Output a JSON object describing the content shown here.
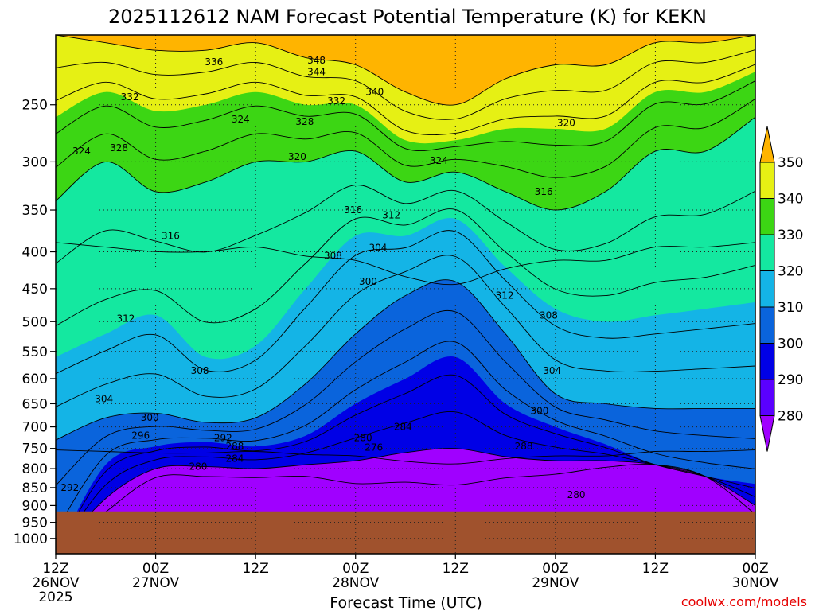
{
  "chart_data": {
    "type": "heatmap",
    "title": "2025112612 NAM Forecast Potential Temperature (K) for KEKN",
    "xlabel": "Forecast Time (UTC)",
    "ylabel": "",
    "credit": "coolwx.com/models",
    "x_ticks": [
      {
        "value": 0,
        "lines": [
          "12Z",
          "26NOV",
          "2025"
        ]
      },
      {
        "value": 12,
        "lines": [
          "00Z",
          "27NOV"
        ]
      },
      {
        "value": 24,
        "lines": [
          "12Z"
        ]
      },
      {
        "value": 36,
        "lines": [
          "00Z",
          "28NOV"
        ]
      },
      {
        "value": 48,
        "lines": [
          "12Z"
        ]
      },
      {
        "value": 60,
        "lines": [
          "00Z",
          "29NOV"
        ]
      },
      {
        "value": 72,
        "lines": [
          "12Z"
        ]
      },
      {
        "value": 84,
        "lines": [
          "00Z",
          "30NOV"
        ]
      }
    ],
    "xlim": [
      0,
      84
    ],
    "y_ticks": [
      250,
      300,
      350,
      400,
      450,
      500,
      550,
      600,
      650,
      700,
      750,
      800,
      850,
      900,
      950,
      1000
    ],
    "ylim": [
      200,
      1050
    ],
    "y_scale": "log",
    "y_inverted": true,
    "terrain_top_pressure": 917,
    "colorbar": {
      "levels": [
        280,
        290,
        300,
        310,
        320,
        330,
        340,
        350
      ],
      "labels": [
        "280",
        "290",
        "300",
        "310",
        "320",
        "330",
        "340",
        "350"
      ],
      "colors": [
        "#a000ff",
        "#5a00ff",
        "#0000e6",
        "#0a64dc",
        "#14b4e6",
        "#14e8a0",
        "#3cd614",
        "#e6f014",
        "#ffb400"
      ],
      "extend": "both"
    },
    "profiles": [
      {
        "x": 0,
        "levels": [
          [
            "280",
            1050
          ],
          [
            "290",
            1050
          ],
          [
            "300",
            730
          ],
          [
            "310",
            560
          ],
          [
            "320",
            340
          ],
          [
            "330",
            260
          ],
          [
            "340",
            200
          ]
        ]
      },
      {
        "x": 6,
        "levels": [
          [
            "280",
            880
          ],
          [
            "290",
            790
          ],
          [
            "300",
            680
          ],
          [
            "310",
            520
          ],
          [
            "320",
            300
          ],
          [
            "330",
            240
          ],
          [
            "340",
            205
          ]
        ]
      },
      {
        "x": 12,
        "levels": [
          [
            "280",
            800
          ],
          [
            "290",
            745
          ],
          [
            "300",
            670
          ],
          [
            "310",
            490
          ],
          [
            "320",
            330
          ],
          [
            "330",
            255
          ],
          [
            "340",
            210
          ]
        ]
      },
      {
        "x": 18,
        "levels": [
          [
            "280",
            795
          ],
          [
            "290",
            735
          ],
          [
            "300",
            690
          ],
          [
            "310",
            560
          ],
          [
            "320",
            320
          ],
          [
            "330",
            250
          ],
          [
            "340",
            210
          ]
        ]
      },
      {
        "x": 24,
        "levels": [
          [
            "280",
            800
          ],
          [
            "290",
            745
          ],
          [
            "300",
            680
          ],
          [
            "310",
            540
          ],
          [
            "320",
            300
          ],
          [
            "330",
            240
          ],
          [
            "340",
            205
          ]
        ]
      },
      {
        "x": 30,
        "levels": [
          [
            "280",
            790
          ],
          [
            "290",
            720
          ],
          [
            "300",
            610
          ],
          [
            "310",
            450
          ],
          [
            "320",
            300
          ],
          [
            "330",
            250
          ],
          [
            "340",
            215
          ]
        ]
      },
      {
        "x": 36,
        "levels": [
          [
            "280",
            780
          ],
          [
            "290",
            650
          ],
          [
            "300",
            520
          ],
          [
            "310",
            380
          ],
          [
            "320",
            290
          ],
          [
            "330",
            250
          ],
          [
            "340",
            220
          ]
        ]
      },
      {
        "x": 42,
        "levels": [
          [
            "280",
            760
          ],
          [
            "290",
            600
          ],
          [
            "300",
            460
          ],
          [
            "310",
            380
          ],
          [
            "320",
            320
          ],
          [
            "330",
            280
          ],
          [
            "340",
            240
          ]
        ]
      },
      {
        "x": 48,
        "levels": [
          [
            "280",
            750
          ],
          [
            "290",
            560
          ],
          [
            "300",
            440
          ],
          [
            "310",
            360
          ],
          [
            "320",
            310
          ],
          [
            "330",
            280
          ],
          [
            "340",
            250
          ]
        ]
      },
      {
        "x": 54,
        "levels": [
          [
            "280",
            770
          ],
          [
            "290",
            650
          ],
          [
            "300",
            520
          ],
          [
            "310",
            420
          ],
          [
            "320",
            330
          ],
          [
            "330",
            270
          ],
          [
            "340",
            230
          ]
        ]
      },
      {
        "x": 60,
        "levels": [
          [
            "280",
            780
          ],
          [
            "290",
            700
          ],
          [
            "300",
            630
          ],
          [
            "310",
            480
          ],
          [
            "320",
            350
          ],
          [
            "330",
            270
          ],
          [
            "340",
            220
          ]
        ]
      },
      {
        "x": 66,
        "levels": [
          [
            "280",
            780
          ],
          [
            "290",
            740
          ],
          [
            "300",
            650
          ],
          [
            "310",
            500
          ],
          [
            "320",
            330
          ],
          [
            "330",
            270
          ],
          [
            "340",
            220
          ]
        ]
      },
      {
        "x": 72,
        "levels": [
          [
            "280",
            790
          ],
          [
            "290",
            790
          ],
          [
            "300",
            660
          ],
          [
            "310",
            490
          ],
          [
            "320",
            290
          ],
          [
            "330",
            240
          ],
          [
            "340",
            205
          ]
        ]
      },
      {
        "x": 78,
        "levels": [
          [
            "280",
            820
          ],
          [
            "290",
            820
          ],
          [
            "300",
            660
          ],
          [
            "310",
            480
          ],
          [
            "320",
            290
          ],
          [
            "330",
            240
          ],
          [
            "340",
            205
          ]
        ]
      },
      {
        "x": 84,
        "levels": [
          [
            "280",
            900
          ],
          [
            "290",
            840
          ],
          [
            "300",
            660
          ],
          [
            "310",
            470
          ],
          [
            "320",
            260
          ],
          [
            "330",
            225
          ],
          [
            "340",
            200
          ]
        ]
      }
    ],
    "contour_labels": [
      {
        "text": "336",
        "x": 19,
        "p": 218
      },
      {
        "text": "348",
        "x": 31.3,
        "p": 217
      },
      {
        "text": "344",
        "x": 31.3,
        "p": 225
      },
      {
        "text": "340",
        "x": 38.3,
        "p": 240
      },
      {
        "text": "332",
        "x": 8.9,
        "p": 244
      },
      {
        "text": "332",
        "x": 33.7,
        "p": 247
      },
      {
        "text": "324",
        "x": 22.2,
        "p": 262
      },
      {
        "text": "328",
        "x": 29.9,
        "p": 264
      },
      {
        "text": "320",
        "x": 61.3,
        "p": 265
      },
      {
        "text": "328",
        "x": 7.6,
        "p": 287
      },
      {
        "text": "324",
        "x": 3.1,
        "p": 290
      },
      {
        "text": "320",
        "x": 29,
        "p": 295
      },
      {
        "text": "324",
        "x": 46,
        "p": 299
      },
      {
        "text": "316",
        "x": 58.6,
        "p": 330
      },
      {
        "text": "316",
        "x": 35.7,
        "p": 350
      },
      {
        "text": "312",
        "x": 40.3,
        "p": 356
      },
      {
        "text": "316",
        "x": 13.8,
        "p": 380
      },
      {
        "text": "304",
        "x": 38.7,
        "p": 395
      },
      {
        "text": "308",
        "x": 33.3,
        "p": 405
      },
      {
        "text": "300",
        "x": 37.5,
        "p": 440
      },
      {
        "text": "312",
        "x": 53.9,
        "p": 460
      },
      {
        "text": "312",
        "x": 8.4,
        "p": 495
      },
      {
        "text": "308",
        "x": 59.2,
        "p": 490
      },
      {
        "text": "308",
        "x": 17.3,
        "p": 585
      },
      {
        "text": "304",
        "x": 59.6,
        "p": 585
      },
      {
        "text": "304",
        "x": 5.8,
        "p": 640
      },
      {
        "text": "300",
        "x": 58.1,
        "p": 665
      },
      {
        "text": "300",
        "x": 11.3,
        "p": 680
      },
      {
        "text": "284",
        "x": 41.7,
        "p": 700
      },
      {
        "text": "296",
        "x": 10.2,
        "p": 720
      },
      {
        "text": "292",
        "x": 20.1,
        "p": 725
      },
      {
        "text": "280",
        "x": 36.9,
        "p": 725
      },
      {
        "text": "288",
        "x": 21.5,
        "p": 745
      },
      {
        "text": "276",
        "x": 38.2,
        "p": 748
      },
      {
        "text": "288",
        "x": 56.2,
        "p": 745
      },
      {
        "text": "284",
        "x": 21.5,
        "p": 775
      },
      {
        "text": "280",
        "x": 17.1,
        "p": 795
      },
      {
        "text": "292",
        "x": 1.7,
        "p": 850
      },
      {
        "text": "280",
        "x": 62.5,
        "p": 870
      }
    ]
  }
}
